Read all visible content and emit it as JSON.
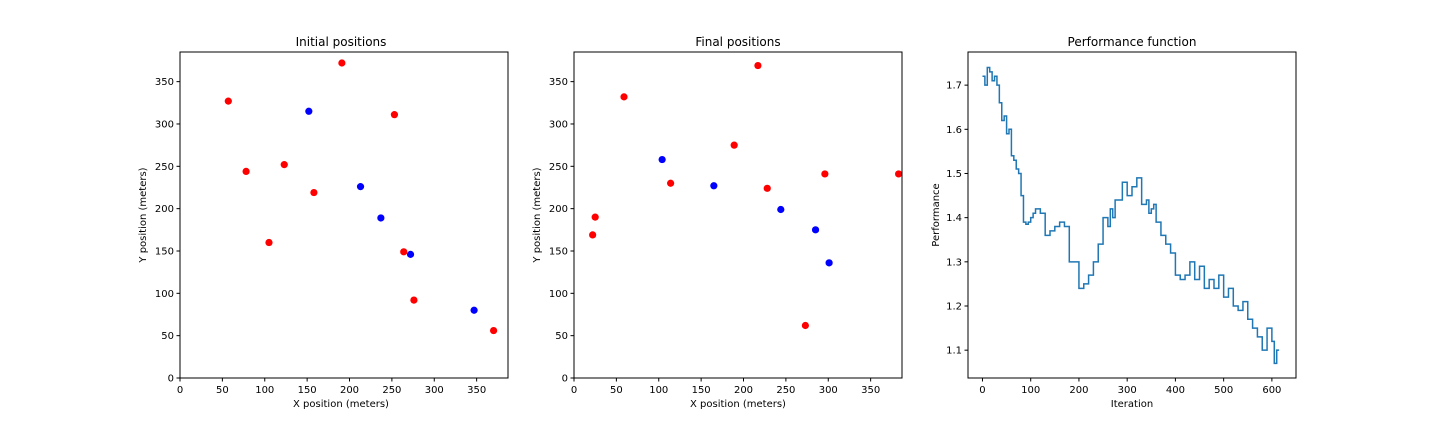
{
  "colors": {
    "red": "#ff0000",
    "blue": "#0000ff",
    "line": "#1f77b4",
    "axes": "#000000"
  },
  "chart_data": [
    {
      "type": "scatter",
      "title": "Initial positions",
      "xlabel": "X position (meters)",
      "ylabel": "Y position (meters)",
      "xlim": [
        0,
        387
      ],
      "ylim": [
        0,
        385
      ],
      "xticks": [
        0,
        50,
        100,
        150,
        200,
        250,
        300,
        350
      ],
      "yticks": [
        0,
        50,
        100,
        150,
        200,
        250,
        300,
        350
      ],
      "grid": false,
      "series": [
        {
          "color": "red",
          "points": [
            [
              57,
              327
            ],
            [
              78,
              244
            ],
            [
              105,
              160
            ],
            [
              123,
              252
            ],
            [
              158,
              219
            ],
            [
              191,
              372
            ],
            [
              253,
              311
            ],
            [
              264,
              149
            ],
            [
              276,
              92
            ],
            [
              370,
              56
            ]
          ]
        },
        {
          "color": "blue",
          "points": [
            [
              152,
              315
            ],
            [
              213,
              226
            ],
            [
              237,
              189
            ],
            [
              272,
              146
            ],
            [
              347,
              80
            ]
          ]
        }
      ]
    },
    {
      "type": "scatter",
      "title": "Final positions",
      "xlabel": "X position (meters)",
      "ylabel": "Y position (meters)",
      "xlim": [
        0,
        387
      ],
      "ylim": [
        0,
        385
      ],
      "xticks": [
        0,
        50,
        100,
        150,
        200,
        250,
        300,
        350
      ],
      "yticks": [
        0,
        50,
        100,
        150,
        200,
        250,
        300,
        350
      ],
      "grid": false,
      "series": [
        {
          "color": "red",
          "points": [
            [
              22,
              169
            ],
            [
              25,
              190
            ],
            [
              59,
              332
            ],
            [
              114,
              230
            ],
            [
              189,
              275
            ],
            [
              217,
              369
            ],
            [
              228,
              224
            ],
            [
              273,
              62
            ],
            [
              296,
              241
            ],
            [
              383,
              241
            ]
          ]
        },
        {
          "color": "blue",
          "points": [
            [
              104,
              258
            ],
            [
              165,
              227
            ],
            [
              244,
              199
            ],
            [
              285,
              175
            ],
            [
              301,
              136
            ]
          ]
        }
      ]
    },
    {
      "type": "line",
      "title": "Performance function",
      "xlabel": "Iteration",
      "ylabel": "Performance",
      "xlim": [
        -30,
        650
      ],
      "ylim": [
        1.037,
        1.775
      ],
      "xticks": [
        0,
        100,
        200,
        300,
        400,
        500,
        600
      ],
      "yticks": [
        1.1,
        1.2,
        1.3,
        1.4,
        1.5,
        1.6,
        1.7
      ],
      "grid": false,
      "series": [
        {
          "color": "line",
          "x": [
            0,
            5,
            10,
            15,
            20,
            25,
            30,
            35,
            40,
            45,
            50,
            55,
            60,
            65,
            70,
            75,
            80,
            85,
            90,
            95,
            100,
            105,
            110,
            120,
            130,
            140,
            150,
            160,
            170,
            180,
            190,
            200,
            210,
            220,
            230,
            240,
            250,
            260,
            265,
            270,
            275,
            280,
            290,
            300,
            310,
            320,
            330,
            340,
            345,
            350,
            355,
            360,
            370,
            380,
            390,
            400,
            410,
            420,
            430,
            440,
            450,
            460,
            470,
            480,
            490,
            500,
            510,
            520,
            530,
            540,
            550,
            560,
            570,
            580,
            590,
            600,
            605,
            610,
            615
          ],
          "y": [
            1.72,
            1.7,
            1.74,
            1.73,
            1.71,
            1.72,
            1.7,
            1.66,
            1.62,
            1.63,
            1.59,
            1.6,
            1.54,
            1.53,
            1.51,
            1.5,
            1.45,
            1.39,
            1.385,
            1.39,
            1.4,
            1.41,
            1.42,
            1.41,
            1.36,
            1.37,
            1.38,
            1.39,
            1.38,
            1.3,
            1.3,
            1.24,
            1.25,
            1.27,
            1.3,
            1.34,
            1.4,
            1.38,
            1.42,
            1.4,
            1.44,
            1.44,
            1.48,
            1.45,
            1.47,
            1.49,
            1.43,
            1.44,
            1.41,
            1.42,
            1.43,
            1.39,
            1.36,
            1.34,
            1.32,
            1.27,
            1.26,
            1.27,
            1.3,
            1.26,
            1.29,
            1.24,
            1.26,
            1.24,
            1.27,
            1.22,
            1.24,
            1.2,
            1.19,
            1.21,
            1.17,
            1.15,
            1.13,
            1.1,
            1.15,
            1.12,
            1.07,
            1.1,
            1.1
          ]
        }
      ]
    }
  ]
}
